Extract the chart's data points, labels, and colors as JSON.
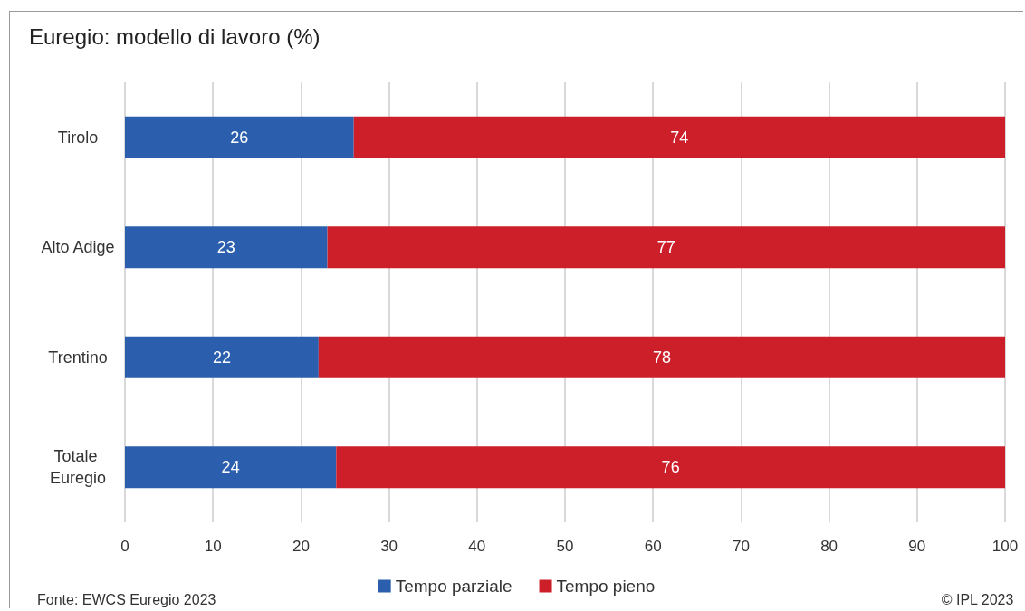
{
  "chart_data": {
    "type": "bar",
    "title": "Euregio: modello di lavoro (%)",
    "orientation": "horizontal",
    "stacked": true,
    "categories": [
      "Tirolo",
      "Alto Adige",
      "Trentino",
      "Totale Euregio"
    ],
    "series": [
      {
        "name": "Tempo parziale",
        "color": "#2b5fad",
        "values": [
          26,
          23,
          22,
          24
        ]
      },
      {
        "name": "Tempo pieno",
        "color": "#cc1f2a",
        "values": [
          74,
          77,
          78,
          76
        ]
      }
    ],
    "xlim": [
      0,
      100
    ],
    "xticks": [
      0,
      10,
      20,
      30,
      40,
      50,
      60,
      70,
      80,
      90,
      100
    ],
    "grid": "x",
    "legend": "bottom",
    "data_labels": true,
    "annotations": [
      "Fonte: EWCS Euregio 2023",
      "© IPL 2023"
    ]
  }
}
